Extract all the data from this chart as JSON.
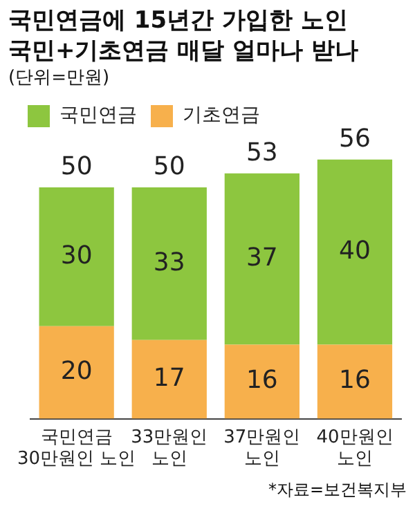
{
  "chart_data": {
    "type": "bar",
    "title": "국민연금에 15년간 가입한 노인",
    "subtitle": "국민+기초연금 매달 얼마나 받나",
    "annotations": [
      "(단위=만원)",
      "*자료=보건복지부"
    ],
    "categories": [
      "국민연금\n30만원인 노인",
      "33만원인\n노인",
      "37만원인\n노인",
      "40만원인\n노인"
    ],
    "stacked": true,
    "data_labels": true,
    "totals": [
      "50",
      "50",
      "53",
      "56"
    ],
    "legend": "top left",
    "grid": false,
    "series": [
      {
        "name": "기초연금",
        "color": "#f7b04c",
        "values": [
          20,
          17,
          16,
          16
        ]
      },
      {
        "name": "국민연금",
        "color": "#8dc63f",
        "values": [
          30,
          33,
          37,
          40
        ]
      }
    ]
  }
}
